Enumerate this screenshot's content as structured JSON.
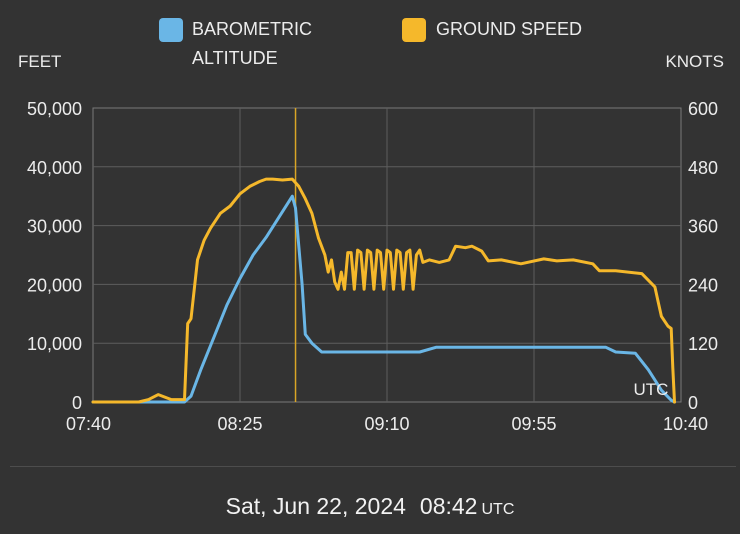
{
  "chart_data": {
    "type": "line",
    "legend": [
      {
        "name": "BAROMETRIC",
        "name_line2": "ALTITUDE",
        "color": "#6ab6e6"
      },
      {
        "name": "GROUND SPEED",
        "color": "#f5b82b"
      }
    ],
    "y_left_label": "FEET",
    "y_right_label": "KNOTS",
    "y_left_ticks": [
      "50,000",
      "40,000",
      "30,000",
      "20,000",
      "10,000",
      "0"
    ],
    "y_right_ticks": [
      "600",
      "480",
      "360",
      "240",
      "120",
      "0"
    ],
    "x_ticks": [
      "07:40",
      "08:25",
      "09:10",
      "09:55",
      "10:40"
    ],
    "ylim_left": [
      0,
      50000
    ],
    "ylim_right": [
      0,
      600
    ],
    "x_range_minutes": [
      0,
      180
    ],
    "cursor_minutes": 62,
    "utc_badge": "UTC",
    "series": [
      {
        "name": "BAROMETRIC ALTITUDE",
        "axis": "left",
        "points": [
          [
            0,
            0
          ],
          [
            28,
            0
          ],
          [
            30,
            1000
          ],
          [
            33,
            5500
          ],
          [
            37,
            11000
          ],
          [
            41,
            16500
          ],
          [
            45,
            21000
          ],
          [
            49,
            25000
          ],
          [
            53,
            28000
          ],
          [
            57,
            31500
          ],
          [
            61,
            35000
          ],
          [
            62,
            33000
          ],
          [
            64,
            20000
          ],
          [
            65,
            11500
          ],
          [
            67,
            10000
          ],
          [
            70,
            8500
          ],
          [
            100,
            8500
          ],
          [
            105,
            9300
          ],
          [
            157,
            9300
          ],
          [
            160,
            8500
          ],
          [
            166,
            8300
          ],
          [
            170,
            5500
          ],
          [
            174,
            2000
          ],
          [
            177,
            300
          ],
          [
            178,
            0
          ]
        ]
      },
      {
        "name": "GROUND SPEED",
        "axis": "right",
        "points": [
          [
            0,
            0
          ],
          [
            14,
            0
          ],
          [
            17,
            5
          ],
          [
            20,
            15
          ],
          [
            24,
            5
          ],
          [
            28,
            5
          ],
          [
            29,
            160
          ],
          [
            30,
            170
          ],
          [
            32,
            290
          ],
          [
            34,
            330
          ],
          [
            36,
            355
          ],
          [
            39,
            385
          ],
          [
            42,
            400
          ],
          [
            45,
            425
          ],
          [
            48,
            440
          ],
          [
            51,
            450
          ],
          [
            53,
            455
          ],
          [
            55,
            455
          ],
          [
            58,
            453
          ],
          [
            61,
            455
          ],
          [
            63,
            440
          ],
          [
            65,
            415
          ],
          [
            67,
            385
          ],
          [
            69,
            335
          ],
          [
            71,
            300
          ],
          [
            72,
            265
          ],
          [
            73,
            290
          ],
          [
            74,
            245
          ],
          [
            75,
            230
          ],
          [
            76,
            265
          ],
          [
            77,
            230
          ],
          [
            78,
            305
          ],
          [
            79,
            305
          ],
          [
            80,
            230
          ],
          [
            81,
            310
          ],
          [
            82,
            305
          ],
          [
            83,
            230
          ],
          [
            84,
            310
          ],
          [
            85,
            305
          ],
          [
            86,
            230
          ],
          [
            87,
            310
          ],
          [
            88,
            305
          ],
          [
            89,
            230
          ],
          [
            90,
            310
          ],
          [
            91,
            305
          ],
          [
            92,
            230
          ],
          [
            93,
            310
          ],
          [
            94,
            305
          ],
          [
            95,
            230
          ],
          [
            96,
            305
          ],
          [
            97,
            310
          ],
          [
            98,
            230
          ],
          [
            99,
            300
          ],
          [
            100,
            310
          ],
          [
            101,
            285
          ],
          [
            103,
            290
          ],
          [
            106,
            285
          ],
          [
            109,
            290
          ],
          [
            111,
            318
          ],
          [
            114,
            315
          ],
          [
            116,
            318
          ],
          [
            119,
            308
          ],
          [
            121,
            288
          ],
          [
            125,
            290
          ],
          [
            131,
            282
          ],
          [
            138,
            292
          ],
          [
            142,
            288
          ],
          [
            147,
            290
          ],
          [
            153,
            282
          ],
          [
            155,
            268
          ],
          [
            160,
            268
          ],
          [
            168,
            262
          ],
          [
            172,
            235
          ],
          [
            173,
            205
          ],
          [
            174,
            175
          ],
          [
            176,
            155
          ],
          [
            177,
            150
          ],
          [
            177.5,
            70
          ],
          [
            178,
            0
          ]
        ]
      }
    ]
  },
  "footer": {
    "date": "Sat, Jun 22, 2024",
    "time": "08:42",
    "tz": "UTC"
  }
}
